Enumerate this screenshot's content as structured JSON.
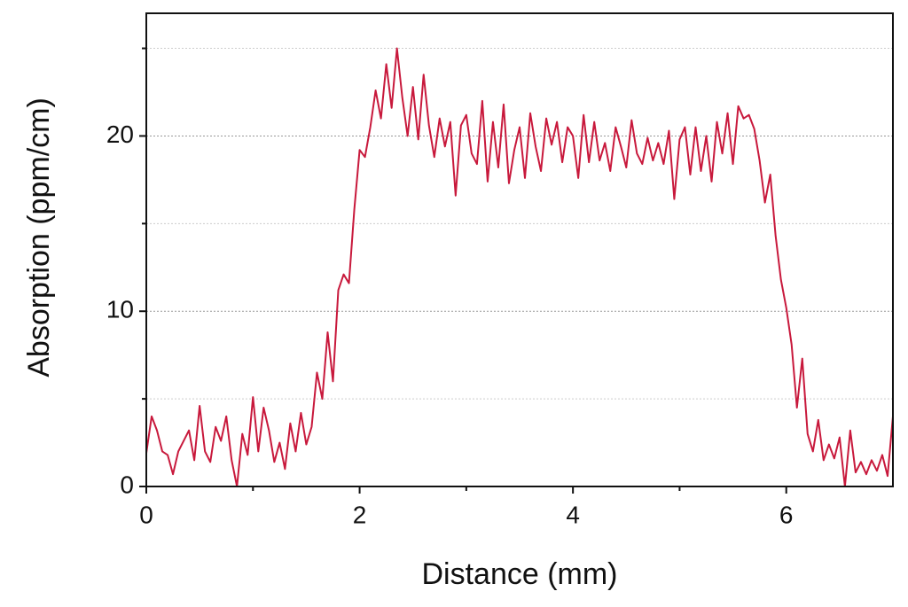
{
  "chart_data": {
    "type": "line",
    "x_label": "Distance (mm)",
    "y_label": "Absorption (ppm/cm)",
    "xlim": [
      0,
      7
    ],
    "xticks": [
      0,
      2,
      4,
      6
    ],
    "xminor": [
      1,
      3,
      5
    ],
    "ylim": [
      0,
      27
    ],
    "yticks": [
      0,
      10,
      20
    ],
    "yminor": [
      5,
      15,
      25
    ],
    "grid": true,
    "x": [
      0,
      0.05,
      0.1,
      0.15,
      0.2,
      0.25,
      0.3,
      0.35,
      0.4,
      0.45,
      0.5,
      0.55,
      0.6,
      0.65,
      0.7,
      0.75,
      0.8,
      0.85,
      0.9,
      0.95,
      1,
      1.05,
      1.1,
      1.15,
      1.2,
      1.25,
      1.3,
      1.35,
      1.4,
      1.45,
      1.5,
      1.55,
      1.6,
      1.65,
      1.7,
      1.75,
      1.8,
      1.85,
      1.9,
      1.95,
      2,
      2.05,
      2.1,
      2.15,
      2.2,
      2.25,
      2.3,
      2.35,
      2.4,
      2.45,
      2.5,
      2.55,
      2.6,
      2.65,
      2.7,
      2.75,
      2.8,
      2.85,
      2.9,
      2.95,
      3,
      3.05,
      3.1,
      3.15,
      3.2,
      3.25,
      3.3,
      3.35,
      3.4,
      3.45,
      3.5,
      3.55,
      3.6,
      3.65,
      3.7,
      3.75,
      3.8,
      3.85,
      3.9,
      3.95,
      4,
      4.05,
      4.1,
      4.15,
      4.2,
      4.25,
      4.3,
      4.35,
      4.4,
      4.45,
      4.5,
      4.55,
      4.6,
      4.65,
      4.7,
      4.75,
      4.8,
      4.85,
      4.9,
      4.95,
      5,
      5.05,
      5.1,
      5.15,
      5.2,
      5.25,
      5.3,
      5.35,
      5.4,
      5.45,
      5.5,
      5.55,
      5.6,
      5.65,
      5.7,
      5.75,
      5.8,
      5.85,
      5.9,
      5.95,
      6,
      6.05,
      6.1,
      6.15,
      6.2,
      6.25,
      6.3,
      6.35,
      6.4,
      6.45,
      6.5,
      6.55,
      6.6,
      6.65,
      6.7,
      6.75,
      6.8,
      6.85,
      6.9,
      6.95,
      7
    ],
    "series": [
      {
        "color": "#c8193c",
        "values": [
          1.9,
          4.0,
          3.2,
          2.0,
          1.8,
          0.7,
          2.0,
          2.6,
          3.2,
          1.5,
          4.6,
          2.0,
          1.4,
          3.4,
          2.6,
          4.0,
          1.5,
          0.0,
          3.0,
          1.8,
          5.1,
          2.0,
          4.5,
          3.2,
          1.4,
          2.5,
          1.0,
          3.6,
          2.0,
          4.2,
          2.4,
          3.4,
          6.5,
          5.0,
          8.8,
          6.0,
          11.2,
          12.1,
          11.6,
          15.8,
          19.2,
          18.8,
          20.5,
          22.6,
          21.0,
          24.1,
          21.6,
          25.0,
          22.2,
          20.0,
          22.8,
          19.8,
          23.5,
          20.6,
          18.8,
          21.0,
          19.4,
          20.8,
          16.6,
          20.6,
          21.2,
          19.0,
          18.4,
          22.0,
          17.4,
          20.8,
          18.2,
          21.8,
          17.3,
          19.2,
          20.5,
          17.6,
          21.3,
          19.4,
          18.0,
          21.0,
          19.5,
          20.8,
          18.5,
          20.5,
          20.0,
          17.6,
          21.2,
          18.5,
          20.8,
          18.6,
          19.6,
          18.0,
          20.5,
          19.4,
          18.2,
          20.9,
          19.0,
          18.4,
          19.9,
          18.6,
          19.6,
          18.4,
          20.3,
          16.4,
          19.8,
          20.5,
          17.8,
          20.5,
          18.0,
          20.0,
          17.4,
          20.8,
          19.0,
          21.3,
          18.4,
          21.7,
          21.0,
          21.2,
          20.4,
          18.6,
          16.2,
          17.8,
          14.3,
          11.8,
          10.2,
          8.1,
          4.5,
          7.3,
          3.0,
          2.0,
          3.8,
          1.5,
          2.4,
          1.6,
          2.8,
          0.0,
          3.2,
          0.8,
          1.4,
          0.7,
          1.5,
          0.9,
          1.8,
          0.6,
          4.0
        ]
      }
    ]
  }
}
